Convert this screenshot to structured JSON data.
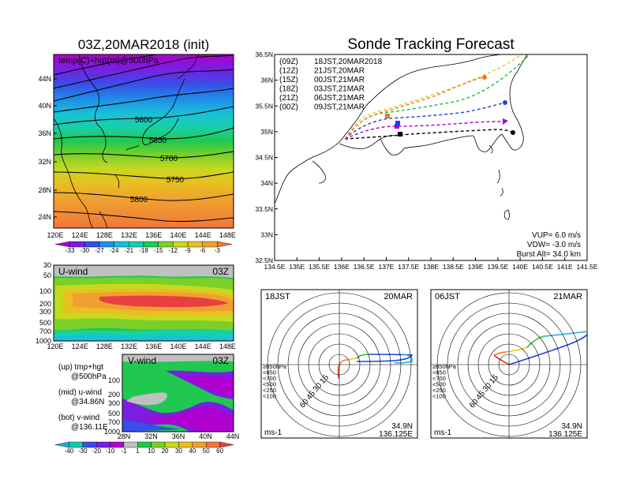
{
  "main": {
    "init_title": "03Z,20MAR2018 (init)",
    "forecast_title": "Sonde Tracking Forecast"
  },
  "map500": {
    "label": "temp(C)+hgt(m)@500hPa",
    "lat_ticks": [
      "44N",
      "40N",
      "36N",
      "32N",
      "28N",
      "24N"
    ],
    "lon_ticks": [
      "120E",
      "124E",
      "128E",
      "132E",
      "136E",
      "140E",
      "144E",
      "148E"
    ],
    "contours": [
      "5600",
      "5650",
      "5700",
      "5750",
      "5800"
    ],
    "colorbar": [
      "-33",
      "-30",
      "-27",
      "-24",
      "-21",
      "-18",
      "-15",
      "-12",
      "-9",
      "-6",
      "-3"
    ],
    "colors": [
      "#b000d0",
      "#7a1ee0",
      "#3a4de8",
      "#1f8fe8",
      "#18c0d8",
      "#18d0a8",
      "#20c850",
      "#7ad028",
      "#c8d820",
      "#e8c020",
      "#f0a030",
      "#f07838"
    ]
  },
  "uwind": {
    "label": "U-wind",
    "time": "03Z",
    "p_ticks": [
      "30",
      "50",
      "100",
      "200",
      "300",
      "500",
      "700",
      "1000"
    ],
    "lon_ticks": [
      "120E",
      "124E",
      "128E",
      "132E",
      "136E",
      "140E",
      "144E",
      "148E"
    ]
  },
  "vwind": {
    "label": "V-wind",
    "time": "03Z",
    "p_ticks": [
      "100",
      "200",
      "300",
      "500",
      "700",
      "1000"
    ],
    "lat_ticks": [
      "28N",
      "32N",
      "36N",
      "40N",
      "44N"
    ]
  },
  "legend_notes": {
    "up_1": "(up) tmp+hgt",
    "up_2": "@500hPa",
    "mid_1": "(mid) u-wind",
    "mid_2": "@34.86N",
    "bot_1": "(bot) v-wind",
    "bot_2": "@136.11E"
  },
  "wind_colorbar": {
    "labels": [
      "-40",
      "-30",
      "-20",
      "-10",
      "-1",
      "1",
      "10",
      "20",
      "30",
      "40",
      "50",
      "60"
    ],
    "colors": [
      "#18b0e0",
      "#18c8b0",
      "#3a4de8",
      "#7a1ee0",
      "#b000d0",
      "#c0c0c0",
      "#20c850",
      "#7ad028",
      "#c8d820",
      "#e8c020",
      "#f0a030",
      "#f07838",
      "#e84040"
    ]
  },
  "track": {
    "lat_ticks": [
      "36.5N",
      "36N",
      "35.5N",
      "35N",
      "34.5N",
      "34N",
      "33.5N",
      "33N",
      "32.5N"
    ],
    "lon_ticks": [
      "134.5E",
      "135E",
      "135.5E",
      "136E",
      "136.5E",
      "137E",
      "137.5E",
      "138E",
      "138.5E",
      "139E",
      "139.5E",
      "140E",
      "140.5E",
      "141E",
      "141.5E"
    ],
    "legend": [
      {
        "code": "(09Z)",
        "label": "18JST,20MAR2018",
        "color": "#000000"
      },
      {
        "code": "(12Z)",
        "label": "21JST,20MAR",
        "color": "#a000c8"
      },
      {
        "code": "(15Z)",
        "label": "00JST,21MAR",
        "color": "#2040e0"
      },
      {
        "code": "(18Z)",
        "label": "03JST,21MAR",
        "color": "#20c030"
      },
      {
        "code": "(21Z)",
        "label": "06JST,21MAR",
        "color": "#e8c820"
      },
      {
        "code": "(00Z)",
        "label": "09JST,21MAR",
        "color": "#f07a20"
      }
    ],
    "vup": "VUP= 6.0 m/s",
    "vdw": "VDW= -3.0 m/s",
    "burst": "Burst Alt= 34.0 km"
  },
  "hodo_left": {
    "time": "18JST",
    "date": "20MAR",
    "rings": [
      "15",
      "30",
      "45",
      "60"
    ],
    "levels": [
      "≥850hPa",
      "<850",
      "<700",
      "<500",
      "<250",
      "<100"
    ],
    "level_colors": [
      "#e83020",
      "#f07a20",
      "#e8c820",
      "#20c030",
      "#2040e0",
      "#18b0e0"
    ],
    "lat": "34.9N",
    "lon": "136.125E",
    "unit": "ms-1"
  },
  "hodo_right": {
    "time": "06JST",
    "date": "21MAR",
    "rings": [
      "15",
      "30",
      "45",
      "60"
    ],
    "levels": [
      "≥850hPa",
      "<850",
      "<700",
      "<500",
      "<250",
      "<100"
    ],
    "level_colors": [
      "#e83020",
      "#f07a20",
      "#e8c820",
      "#20c030",
      "#2040e0",
      "#18b0e0"
    ],
    "lat": "34.9N",
    "lon": "136.125E",
    "unit": "ms-1"
  }
}
